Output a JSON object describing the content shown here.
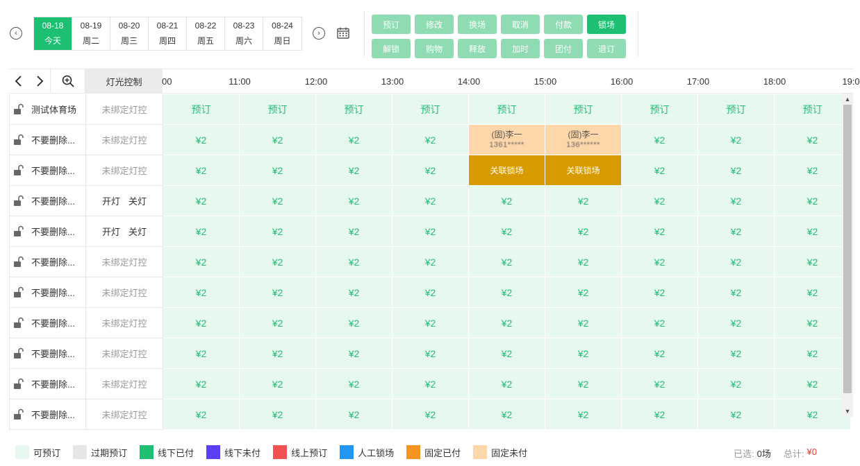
{
  "dates": [
    {
      "date": "08-18",
      "day": "今天",
      "active": true
    },
    {
      "date": "08-19",
      "day": "周二",
      "active": false
    },
    {
      "date": "08-20",
      "day": "周三",
      "active": false
    },
    {
      "date": "08-21",
      "day": "周四",
      "active": false
    },
    {
      "date": "08-22",
      "day": "周五",
      "active": false
    },
    {
      "date": "08-23",
      "day": "周六",
      "active": false
    },
    {
      "date": "08-24",
      "day": "周日",
      "active": false
    }
  ],
  "actions": [
    {
      "label": "预订",
      "strong": false
    },
    {
      "label": "修改",
      "strong": false
    },
    {
      "label": "换场",
      "strong": false
    },
    {
      "label": "取消",
      "strong": false
    },
    {
      "label": "付款",
      "strong": false
    },
    {
      "label": "锁场",
      "strong": true
    },
    {
      "label": "解锁",
      "strong": false
    },
    {
      "label": "购物",
      "strong": false
    },
    {
      "label": "释放",
      "strong": false
    },
    {
      "label": "加时",
      "strong": false
    },
    {
      "label": "团付",
      "strong": false
    },
    {
      "label": "退订",
      "strong": false
    }
  ],
  "grid": {
    "light_header": "灯光控制",
    "times": [
      "00",
      "11:00",
      "12:00",
      "13:00",
      "14:00",
      "15:00",
      "16:00",
      "17:00",
      "18:00",
      "19:0"
    ],
    "rows": [
      {
        "name": "测试体育场",
        "light": "未绑定灯控",
        "slots": [
          "预订",
          "预订",
          "预订",
          "预订",
          "预订",
          "预订",
          "预订",
          "预订",
          "预订"
        ]
      },
      {
        "name": "不要删除...",
        "light": "未绑定灯控",
        "slots": [
          "¥2",
          "¥2",
          "¥2",
          "¥2",
          {
            "type": "fixed-unpaid",
            "title": "(固)李一",
            "phone": "1361*****"
          },
          {
            "type": "fixed-unpaid",
            "title": "(固)李一",
            "phone": "136******"
          },
          "¥2",
          "¥2",
          "¥2"
        ]
      },
      {
        "name": "不要删除...",
        "light": "未绑定灯控",
        "slots": [
          "¥2",
          "¥2",
          "¥2",
          "¥2",
          {
            "type": "locked",
            "title": "关联锁场"
          },
          {
            "type": "locked",
            "title": "关联锁场"
          },
          "¥2",
          "¥2",
          "¥2"
        ]
      },
      {
        "name": "不要删除...",
        "light": {
          "on": "开灯",
          "off": "关灯"
        },
        "slots": [
          "¥2",
          "¥2",
          "¥2",
          "¥2",
          "¥2",
          "¥2",
          "¥2",
          "¥2",
          "¥2"
        ]
      },
      {
        "name": "不要删除...",
        "light": {
          "on": "开灯",
          "off": "关灯"
        },
        "slots": [
          "¥2",
          "¥2",
          "¥2",
          "¥2",
          "¥2",
          "¥2",
          "¥2",
          "¥2",
          "¥2"
        ]
      },
      {
        "name": "不要删除...",
        "light": "未绑定灯控",
        "slots": [
          "¥2",
          "¥2",
          "¥2",
          "¥2",
          "¥2",
          "¥2",
          "¥2",
          "¥2",
          "¥2"
        ]
      },
      {
        "name": "不要删除...",
        "light": "未绑定灯控",
        "slots": [
          "¥2",
          "¥2",
          "¥2",
          "¥2",
          "¥2",
          "¥2",
          "¥2",
          "¥2",
          "¥2"
        ]
      },
      {
        "name": "不要删除...",
        "light": "未绑定灯控",
        "slots": [
          "¥2",
          "¥2",
          "¥2",
          "¥2",
          "¥2",
          "¥2",
          "¥2",
          "¥2",
          "¥2"
        ]
      },
      {
        "name": "不要删除...",
        "light": "未绑定灯控",
        "slots": [
          "¥2",
          "¥2",
          "¥2",
          "¥2",
          "¥2",
          "¥2",
          "¥2",
          "¥2",
          "¥2"
        ]
      },
      {
        "name": "不要删除...",
        "light": "未绑定灯控",
        "slots": [
          "¥2",
          "¥2",
          "¥2",
          "¥2",
          "¥2",
          "¥2",
          "¥2",
          "¥2",
          "¥2"
        ]
      },
      {
        "name": "不要删除...",
        "light": "未绑定灯控",
        "slots": [
          "¥2",
          "¥2",
          "¥2",
          "¥2",
          "¥2",
          "¥2",
          "¥2",
          "¥2",
          "¥2"
        ]
      }
    ]
  },
  "legend": [
    {
      "label": "可预订",
      "color": "#e7f8ee"
    },
    {
      "label": "过期预订",
      "color": "#e6e6e6"
    },
    {
      "label": "线下已付",
      "color": "#1dbf73"
    },
    {
      "label": "线下未付",
      "color": "#5b3ff5"
    },
    {
      "label": "线上预订",
      "color": "#f45252"
    },
    {
      "label": "人工锁场",
      "color": "#2196f3"
    },
    {
      "label": "固定已付",
      "color": "#f7941d"
    },
    {
      "label": "固定未付",
      "color": "#fdd6a9"
    }
  ],
  "summary": {
    "selected_label": "已选:",
    "selected_value": "0场",
    "total_label": "总计:",
    "total_value": "¥0"
  }
}
